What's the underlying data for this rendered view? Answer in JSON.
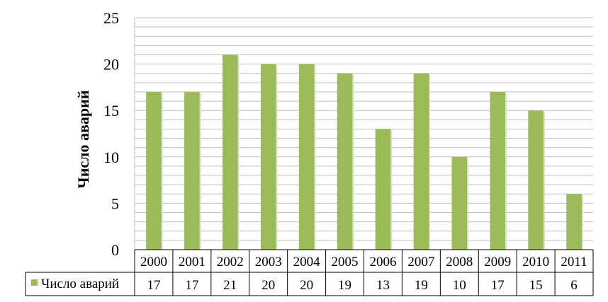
{
  "chart_data": {
    "type": "table",
    "chart_kind": "bar",
    "categories": [
      "2000",
      "2001",
      "2002",
      "2003",
      "2004",
      "2005",
      "2006",
      "2007",
      "2008",
      "2009",
      "2010",
      "2011"
    ],
    "series": [
      {
        "name": "Число аварий",
        "values": [
          17,
          17,
          21,
          20,
          20,
          19,
          13,
          19,
          10,
          17,
          15,
          6
        ]
      }
    ],
    "ylabel": "Число аварий",
    "ylim": [
      0,
      25
    ],
    "yticks": [
      0,
      5,
      10,
      15,
      20,
      25
    ],
    "grid": true,
    "gridline_step": 1,
    "legend": "data-table-left",
    "bar_color": "#9bbb59"
  }
}
